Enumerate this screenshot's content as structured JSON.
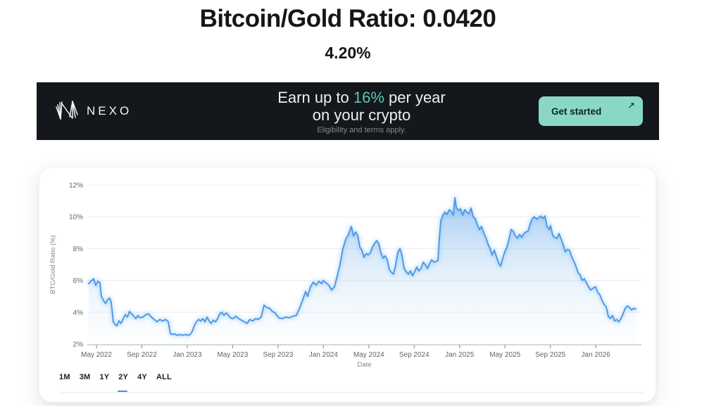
{
  "page": {
    "title": "Bitcoin/Gold Ratio: 0.0420",
    "subtitle": "4.20%"
  },
  "banner": {
    "brand": "NEXO",
    "headline_prefix": "Earn up to ",
    "headline_highlight": "16%",
    "headline_suffix": " per year",
    "headline_line2": "on your crypto",
    "disclaimer": "Eligibility and terms apply.",
    "cta_label": "Get started",
    "icons": {
      "arrow_up_right": "↗",
      "nexo_mark": "nexo-logo-icon"
    },
    "colors": {
      "background": "#14171b",
      "highlight": "#5ac8b8",
      "button_bg": "#89d7c7",
      "button_text": "#10241f",
      "text": "#edf0f1",
      "disclaimer_text": "#84898d"
    }
  },
  "chart_card": {
    "range_buttons": [
      "1M",
      "3M",
      "1Y",
      "2Y",
      "4Y",
      "ALL"
    ],
    "active_range": "4Y",
    "accent_color": "#4f87f5"
  },
  "chart_data": {
    "type": "area",
    "title": "",
    "xlabel": "Date",
    "ylabel": "BTC/Gold Ratio (%)",
    "grid": "horizontal",
    "legend": "none",
    "line_color": "#4d9be8",
    "fill_style": "vertical-gradient-blue",
    "ylim": [
      2,
      12.4
    ],
    "xlim": [
      2022.276,
      2026.295
    ],
    "y_ticks": [
      2,
      4,
      6,
      8,
      10,
      12
    ],
    "y_tick_suffix": "%",
    "x_ticks": [
      {
        "t": 2022.3333,
        "label": "May 2022"
      },
      {
        "t": 2022.6667,
        "label": "Sep 2022"
      },
      {
        "t": 2023.0,
        "label": "Jan 2023"
      },
      {
        "t": 2023.3333,
        "label": "May 2023"
      },
      {
        "t": 2023.6667,
        "label": "Sep 2023"
      },
      {
        "t": 2024.0,
        "label": "Jan 2024"
      },
      {
        "t": 2024.3333,
        "label": "May 2024"
      },
      {
        "t": 2024.6667,
        "label": "Sep 2024"
      },
      {
        "t": 2025.0,
        "label": "Jan 2025"
      },
      {
        "t": 2025.3333,
        "label": "May 2025"
      },
      {
        "t": 2025.6667,
        "label": "Sep 2025"
      },
      {
        "t": 2026.0,
        "label": "Jan 2026"
      }
    ],
    "series": [
      {
        "name": "BTC/Gold Ratio (%)",
        "points": [
          [
            2022.276,
            5.8
          ],
          [
            2022.292,
            5.95
          ],
          [
            2022.313,
            6.1
          ],
          [
            2022.328,
            5.7
          ],
          [
            2022.344,
            5.95
          ],
          [
            2022.359,
            5.85
          ],
          [
            2022.369,
            5.0
          ],
          [
            2022.385,
            4.75
          ],
          [
            2022.4,
            4.55
          ],
          [
            2022.416,
            4.8
          ],
          [
            2022.431,
            4.9
          ],
          [
            2022.442,
            4.6
          ],
          [
            2022.457,
            3.4
          ],
          [
            2022.468,
            3.25
          ],
          [
            2022.483,
            3.15
          ],
          [
            2022.499,
            3.45
          ],
          [
            2022.514,
            3.3
          ],
          [
            2022.53,
            3.6
          ],
          [
            2022.545,
            3.85
          ],
          [
            2022.561,
            3.7
          ],
          [
            2022.576,
            4.05
          ],
          [
            2022.592,
            3.9
          ],
          [
            2022.607,
            3.75
          ],
          [
            2022.623,
            3.6
          ],
          [
            2022.638,
            3.8
          ],
          [
            2022.654,
            3.65
          ],
          [
            2022.675,
            3.7
          ],
          [
            2022.695,
            3.85
          ],
          [
            2022.716,
            3.9
          ],
          [
            2022.737,
            3.7
          ],
          [
            2022.757,
            3.55
          ],
          [
            2022.778,
            3.4
          ],
          [
            2022.799,
            3.55
          ],
          [
            2022.819,
            3.45
          ],
          [
            2022.84,
            3.55
          ],
          [
            2022.861,
            3.4
          ],
          [
            2022.876,
            2.65
          ],
          [
            2022.892,
            2.6
          ],
          [
            2022.907,
            2.65
          ],
          [
            2022.923,
            2.55
          ],
          [
            2022.943,
            2.6
          ],
          [
            2022.964,
            2.55
          ],
          [
            2022.985,
            2.6
          ],
          [
            2023.005,
            2.55
          ],
          [
            2023.021,
            2.6
          ],
          [
            2023.037,
            2.8
          ],
          [
            2023.052,
            3.15
          ],
          [
            2023.067,
            3.4
          ],
          [
            2023.083,
            3.55
          ],
          [
            2023.099,
            3.45
          ],
          [
            2023.114,
            3.6
          ],
          [
            2023.13,
            3.4
          ],
          [
            2023.145,
            3.7
          ],
          [
            2023.161,
            3.45
          ],
          [
            2023.176,
            3.3
          ],
          [
            2023.192,
            3.5
          ],
          [
            2023.207,
            3.4
          ],
          [
            2023.223,
            3.6
          ],
          [
            2023.238,
            3.9
          ],
          [
            2023.254,
            4.0
          ],
          [
            2023.269,
            3.8
          ],
          [
            2023.285,
            3.95
          ],
          [
            2023.3,
            3.85
          ],
          [
            2023.316,
            3.65
          ],
          [
            2023.336,
            3.6
          ],
          [
            2023.357,
            3.75
          ],
          [
            2023.378,
            3.6
          ],
          [
            2023.398,
            3.5
          ],
          [
            2023.419,
            3.4
          ],
          [
            2023.44,
            3.3
          ],
          [
            2023.46,
            3.55
          ],
          [
            2023.481,
            3.45
          ],
          [
            2023.502,
            3.6
          ],
          [
            2023.522,
            3.55
          ],
          [
            2023.543,
            3.7
          ],
          [
            2023.564,
            4.45
          ],
          [
            2023.584,
            4.3
          ],
          [
            2023.605,
            4.25
          ],
          [
            2023.626,
            4.05
          ],
          [
            2023.646,
            3.95
          ],
          [
            2023.672,
            3.65
          ],
          [
            2023.698,
            3.6
          ],
          [
            2023.724,
            3.7
          ],
          [
            2023.75,
            3.65
          ],
          [
            2023.776,
            3.75
          ],
          [
            2023.801,
            3.8
          ],
          [
            2023.827,
            4.3
          ],
          [
            2023.853,
            4.9
          ],
          [
            2023.869,
            5.3
          ],
          [
            2023.884,
            5.0
          ],
          [
            2023.905,
            5.6
          ],
          [
            2023.926,
            5.9
          ],
          [
            2023.946,
            5.7
          ],
          [
            2023.967,
            5.95
          ],
          [
            2023.988,
            5.8
          ],
          [
            2023.998,
            6.0
          ],
          [
            2024.019,
            5.85
          ],
          [
            2024.04,
            5.7
          ],
          [
            2024.06,
            5.4
          ],
          [
            2024.081,
            5.6
          ],
          [
            2024.102,
            6.3
          ],
          [
            2024.122,
            7.0
          ],
          [
            2024.143,
            8.0
          ],
          [
            2024.164,
            8.6
          ],
          [
            2024.184,
            8.9
          ],
          [
            2024.205,
            9.4
          ],
          [
            2024.221,
            8.8
          ],
          [
            2024.236,
            9.05
          ],
          [
            2024.252,
            8.85
          ],
          [
            2024.267,
            8.1
          ],
          [
            2024.283,
            7.9
          ],
          [
            2024.298,
            7.45
          ],
          [
            2024.314,
            7.7
          ],
          [
            2024.329,
            7.6
          ],
          [
            2024.345,
            7.75
          ],
          [
            2024.36,
            8.1
          ],
          [
            2024.376,
            8.35
          ],
          [
            2024.391,
            8.5
          ],
          [
            2024.407,
            8.3
          ],
          [
            2024.422,
            7.75
          ],
          [
            2024.438,
            7.4
          ],
          [
            2024.453,
            7.55
          ],
          [
            2024.469,
            7.3
          ],
          [
            2024.484,
            6.7
          ],
          [
            2024.5,
            6.5
          ],
          [
            2024.515,
            6.4
          ],
          [
            2024.531,
            7.0
          ],
          [
            2024.546,
            7.75
          ],
          [
            2024.562,
            8.0
          ],
          [
            2024.577,
            7.6
          ],
          [
            2024.593,
            6.75
          ],
          [
            2024.608,
            6.55
          ],
          [
            2024.624,
            6.4
          ],
          [
            2024.639,
            6.6
          ],
          [
            2024.655,
            6.3
          ],
          [
            2024.67,
            6.55
          ],
          [
            2024.686,
            6.85
          ],
          [
            2024.701,
            6.6
          ],
          [
            2024.717,
            6.75
          ],
          [
            2024.733,
            7.15
          ],
          [
            2024.748,
            7.0
          ],
          [
            2024.764,
            6.75
          ],
          [
            2024.779,
            7.05
          ],
          [
            2024.795,
            7.3
          ],
          [
            2024.81,
            7.15
          ],
          [
            2024.826,
            7.2
          ],
          [
            2024.841,
            7.25
          ],
          [
            2024.851,
            8.6
          ],
          [
            2024.862,
            9.75
          ],
          [
            2024.877,
            10.1
          ],
          [
            2024.893,
            10.3
          ],
          [
            2024.908,
            10.15
          ],
          [
            2024.924,
            10.45
          ],
          [
            2024.939,
            10.35
          ],
          [
            2024.955,
            10.1
          ],
          [
            2024.965,
            11.2
          ],
          [
            2024.976,
            10.6
          ],
          [
            2024.991,
            10.4
          ],
          [
            2025.007,
            10.5
          ],
          [
            2025.022,
            10.1
          ],
          [
            2025.038,
            10.45
          ],
          [
            2025.053,
            10.3
          ],
          [
            2025.069,
            10.2
          ],
          [
            2025.084,
            10.55
          ],
          [
            2025.1,
            10.0
          ],
          [
            2025.115,
            9.9
          ],
          [
            2025.131,
            9.5
          ],
          [
            2025.146,
            9.2
          ],
          [
            2025.161,
            9.4
          ],
          [
            2025.177,
            9.0
          ],
          [
            2025.193,
            8.7
          ],
          [
            2025.208,
            8.3
          ],
          [
            2025.224,
            8.0
          ],
          [
            2025.239,
            7.6
          ],
          [
            2025.255,
            7.9
          ],
          [
            2025.27,
            7.5
          ],
          [
            2025.286,
            7.1
          ],
          [
            2025.301,
            6.9
          ],
          [
            2025.317,
            7.4
          ],
          [
            2025.332,
            7.8
          ],
          [
            2025.348,
            8.1
          ],
          [
            2025.363,
            8.6
          ],
          [
            2025.379,
            9.2
          ],
          [
            2025.394,
            9.1
          ],
          [
            2025.41,
            8.8
          ],
          [
            2025.425,
            8.65
          ],
          [
            2025.441,
            8.9
          ],
          [
            2025.456,
            8.7
          ],
          [
            2025.472,
            8.95
          ],
          [
            2025.487,
            9.05
          ],
          [
            2025.503,
            9.1
          ],
          [
            2025.518,
            9.55
          ],
          [
            2025.534,
            9.9
          ],
          [
            2025.549,
            10.0
          ],
          [
            2025.565,
            9.85
          ],
          [
            2025.58,
            9.95
          ],
          [
            2025.596,
            10.05
          ],
          [
            2025.611,
            9.9
          ],
          [
            2025.627,
            10.05
          ],
          [
            2025.642,
            9.4
          ],
          [
            2025.658,
            9.2
          ],
          [
            2025.668,
            9.45
          ],
          [
            2025.684,
            8.85
          ],
          [
            2025.699,
            8.7
          ],
          [
            2025.715,
            8.65
          ],
          [
            2025.73,
            8.95
          ],
          [
            2025.746,
            8.6
          ],
          [
            2025.761,
            8.25
          ],
          [
            2025.777,
            7.8
          ],
          [
            2025.792,
            7.95
          ],
          [
            2025.808,
            7.9
          ],
          [
            2025.823,
            7.5
          ],
          [
            2025.839,
            7.2
          ],
          [
            2025.854,
            6.9
          ],
          [
            2025.87,
            6.5
          ],
          [
            2025.885,
            6.35
          ],
          [
            2025.901,
            6.0
          ],
          [
            2025.916,
            6.1
          ],
          [
            2025.932,
            5.85
          ],
          [
            2025.947,
            5.6
          ],
          [
            2025.963,
            5.4
          ],
          [
            2025.978,
            5.5
          ],
          [
            2025.999,
            5.6
          ],
          [
            2026.015,
            5.25
          ],
          [
            2026.03,
            5.1
          ],
          [
            2026.046,
            4.75
          ],
          [
            2026.061,
            4.5
          ],
          [
            2026.077,
            4.35
          ],
          [
            2026.092,
            3.75
          ],
          [
            2026.108,
            3.6
          ],
          [
            2026.123,
            3.8
          ],
          [
            2026.139,
            3.45
          ],
          [
            2026.154,
            3.55
          ],
          [
            2026.17,
            3.4
          ],
          [
            2026.185,
            3.6
          ],
          [
            2026.201,
            3.9
          ],
          [
            2026.216,
            4.25
          ],
          [
            2026.232,
            4.4
          ],
          [
            2026.247,
            4.3
          ],
          [
            2026.263,
            4.15
          ],
          [
            2026.278,
            4.25
          ],
          [
            2026.294,
            4.2
          ]
        ]
      }
    ]
  }
}
